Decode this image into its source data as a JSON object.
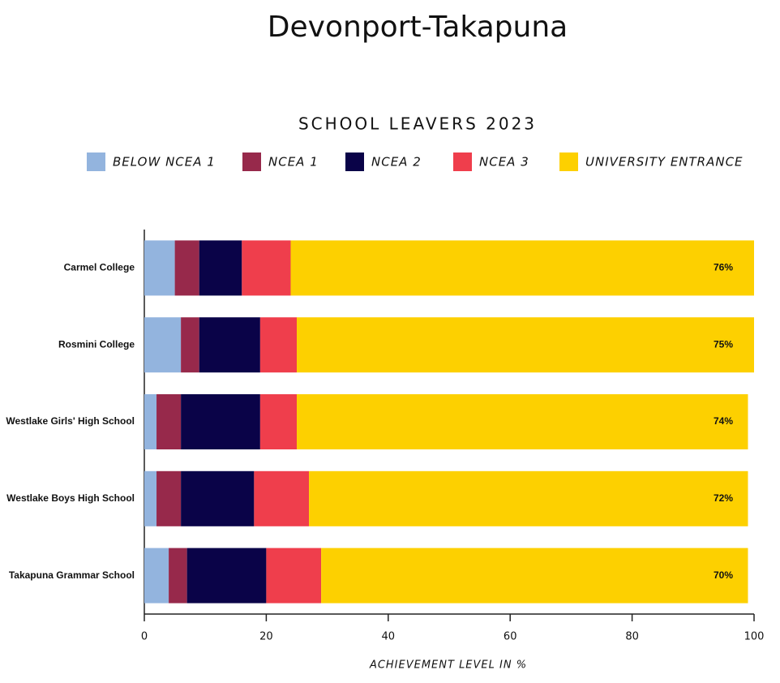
{
  "chart_data": {
    "type": "stacked-barh",
    "title": "Devonport-Takapuna",
    "subtitle": "SCHOOL LEAVERS 2023",
    "xlabel": "ACHIEVEMENT LEVEL IN %",
    "categories": [
      "Carmel College",
      "Rosmini College",
      "Westlake Girls' High School",
      "Westlake Boys High School",
      "Takapuna Grammar School"
    ],
    "series": [
      {
        "name": "BELOW NCEA 1",
        "color": "#93b4de",
        "values": [
          5,
          6,
          2,
          2,
          4
        ]
      },
      {
        "name": "NCEA 1",
        "color": "#97294b",
        "values": [
          4,
          3,
          4,
          4,
          3
        ]
      },
      {
        "name": "NCEA 2",
        "color": "#0a0348",
        "values": [
          7,
          10,
          13,
          12,
          13
        ]
      },
      {
        "name": "NCEA 3",
        "color": "#ef3e4c",
        "values": [
          8,
          6,
          6,
          9,
          9
        ]
      },
      {
        "name": "UNIVERSITY ENTRANCE",
        "color": "#fdd000",
        "values": [
          76,
          75,
          74,
          72,
          70
        ],
        "value_labels": [
          "76%",
          "75%",
          "74%",
          "72%",
          "70%"
        ]
      }
    ],
    "xlim": [
      0,
      100
    ],
    "xticks": [
      0,
      20,
      40,
      60,
      80,
      100
    ]
  }
}
